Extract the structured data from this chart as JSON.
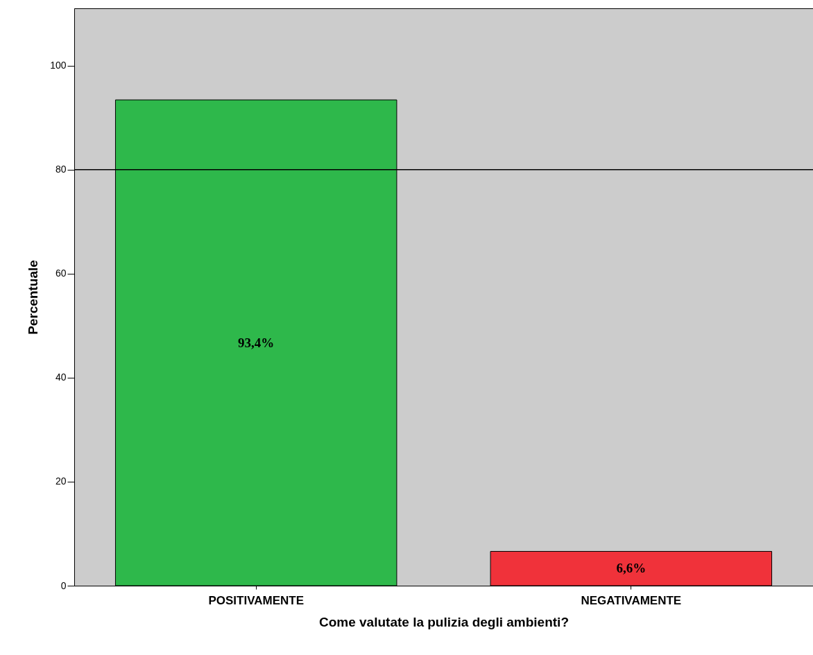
{
  "chart_data": {
    "type": "bar",
    "xlabel": "Come valutate la pulizia degli ambienti?",
    "ylabel": "Percentuale",
    "categories": [
      "POSITIVAMENTE",
      "NEGATIVAMENTE"
    ],
    "values": [
      93.4,
      6.6
    ],
    "colors": [
      "#2eb84b",
      "#f0323a"
    ],
    "value_labels": [
      "93,4%",
      "6,6%"
    ],
    "ylim": [
      0,
      111
    ],
    "yticks": [
      0,
      20,
      40,
      60,
      80,
      100
    ],
    "grid": false,
    "ref_lines": [
      {
        "axis": "y",
        "value": 80,
        "label": null,
        "color": "#000000"
      }
    ]
  }
}
